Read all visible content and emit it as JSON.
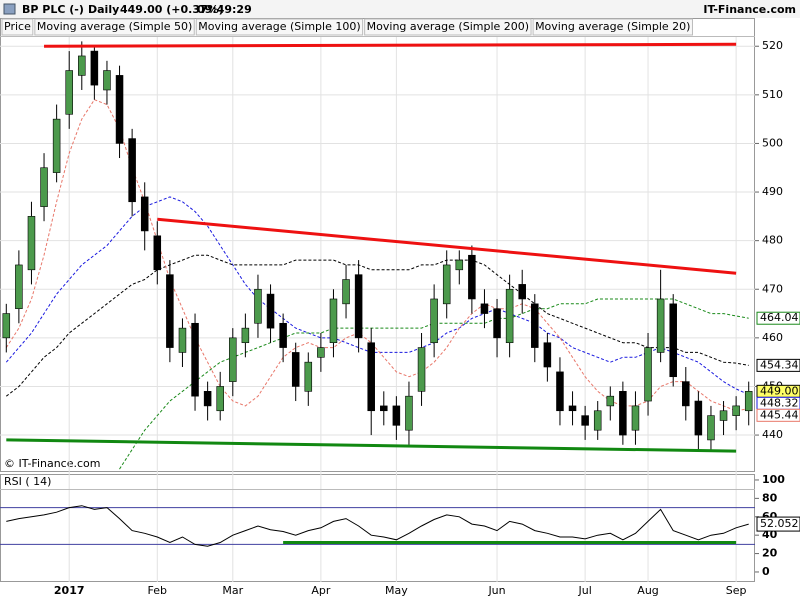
{
  "header": {
    "title": "BP PLC (-)",
    "period": "Daily",
    "quote": "449.00 (+0.37%)",
    "time": "09:49:29",
    "brand": "IT-Finance.com"
  },
  "chart_data": [
    {
      "type": "candlestick",
      "watermark": "© IT-Finance.com",
      "grid": true,
      "ylim": [
        432.4,
        521.9
      ],
      "yticks": [
        440,
        450,
        460,
        470,
        480,
        490,
        500,
        510,
        520
      ],
      "categories": [
        null,
        null,
        null,
        null,
        null,
        "2017",
        null,
        null,
        null,
        null,
        null,
        null,
        "Feb",
        null,
        null,
        null,
        null,
        null,
        "Mar",
        null,
        null,
        null,
        null,
        null,
        null,
        "Apr",
        null,
        null,
        null,
        null,
        null,
        "May",
        null,
        null,
        null,
        null,
        null,
        null,
        null,
        "Jun",
        null,
        null,
        null,
        null,
        null,
        null,
        "Jul",
        null,
        null,
        null,
        null,
        "Aug",
        null,
        null,
        null,
        null,
        null,
        null,
        "Sep",
        null
      ],
      "ohlc": {
        "name": "Price",
        "up_color": "#4c9a4c",
        "down_color": "#000000",
        "end_label": "449.00",
        "open": [
          460,
          466,
          474,
          487,
          494,
          506,
          514,
          519,
          511,
          514,
          501,
          489,
          481,
          473,
          457,
          463,
          449,
          445,
          451,
          459,
          463,
          469,
          463,
          457,
          449,
          456,
          459,
          467,
          473,
          459,
          446,
          446,
          441,
          449,
          459,
          467,
          474,
          477,
          467,
          466,
          459,
          471,
          467,
          459,
          453,
          446,
          444,
          441,
          446,
          449,
          441,
          447,
          457,
          467,
          451,
          447,
          439,
          443,
          444,
          445
        ],
        "high": [
          467,
          478,
          488,
          498,
          508,
          519,
          521,
          520,
          517,
          516,
          503,
          492,
          484,
          476,
          464,
          465,
          451,
          453,
          462,
          465,
          473,
          471,
          465,
          459,
          457,
          461,
          470,
          475,
          476,
          462,
          449,
          448,
          451,
          461,
          471,
          478,
          478,
          479,
          470,
          468,
          473,
          474,
          469,
          461,
          456,
          449,
          446,
          447,
          450,
          451,
          449,
          461,
          474,
          469,
          454,
          449,
          446,
          447,
          448,
          451
        ],
        "low": [
          457,
          463,
          471,
          484,
          492,
          503,
          511,
          509,
          508,
          497,
          485,
          478,
          471,
          455,
          454,
          445,
          443,
          443,
          448,
          456,
          460,
          459,
          455,
          447,
          446,
          453,
          456,
          464,
          457,
          440,
          442,
          439,
          438,
          446,
          456,
          464,
          471,
          465,
          462,
          456,
          456,
          465,
          455,
          451,
          442,
          442,
          439,
          439,
          443,
          438,
          438,
          444,
          455,
          450,
          443,
          437,
          437,
          440,
          441,
          442
        ],
        "close": [
          465,
          475,
          485,
          495,
          505,
          515,
          518,
          512,
          515,
          500,
          488,
          482,
          474,
          458,
          462,
          448,
          446,
          450,
          460,
          462,
          470,
          462,
          458,
          450,
          455,
          458,
          468,
          472,
          460,
          445,
          445,
          442,
          448,
          458,
          468,
          475,
          476,
          468,
          465,
          460,
          470,
          468,
          458,
          454,
          445,
          445,
          442,
          445,
          448,
          440,
          446,
          458,
          468,
          452,
          446,
          440,
          444,
          445,
          446,
          449
        ]
      },
      "series": [
        {
          "name": "Moving average (Simple 50)",
          "color": "#1a1adf",
          "end_label": "448.32",
          "values": [
            455,
            458,
            461,
            465,
            469,
            472,
            475,
            477,
            479,
            482,
            485,
            487,
            488,
            489,
            488,
            486,
            483,
            479,
            475,
            471,
            468,
            466,
            464,
            462,
            461,
            460,
            460,
            459,
            458,
            457,
            457,
            457,
            457,
            458,
            459,
            461,
            462,
            464,
            465,
            466,
            465,
            464,
            463,
            461,
            460,
            458,
            457,
            456,
            455,
            456,
            456,
            457,
            458,
            457,
            456,
            455,
            453,
            451,
            449.5,
            448.32
          ]
        },
        {
          "name": "Moving average (Simple 100)",
          "color": "#000000",
          "end_label": "454.34",
          "values": [
            448,
            450,
            453,
            456,
            458,
            461,
            463,
            465,
            467,
            469,
            471,
            472,
            474,
            475,
            476,
            477,
            477,
            476,
            475,
            475,
            475,
            475,
            475,
            476,
            476,
            476,
            476,
            475,
            475,
            474,
            474,
            474,
            474,
            475,
            475,
            476,
            476,
            476,
            475,
            473,
            471,
            469,
            467,
            465,
            464,
            463,
            462,
            461,
            460,
            459,
            459,
            458,
            458,
            458,
            457,
            457,
            456,
            455,
            454.8,
            454.34
          ]
        },
        {
          "name": "Moving average (Simple 200)",
          "color": "#1a8a1a",
          "end_label": "464.04",
          "values": [
            null,
            null,
            null,
            null,
            null,
            null,
            null,
            null,
            null,
            433,
            437,
            441,
            444,
            447,
            449,
            451,
            453,
            455,
            456,
            457,
            458,
            459,
            460,
            461,
            461,
            461,
            462,
            462,
            462,
            462,
            462,
            462,
            462,
            462,
            463,
            463,
            463,
            463,
            463,
            464,
            464,
            465,
            466,
            466,
            467,
            467,
            467,
            468,
            468,
            468,
            468,
            468,
            468,
            468,
            467,
            466,
            465,
            465,
            464.5,
            464.04
          ]
        },
        {
          "name": "Moving average (Simple 20)",
          "color": "#e8776a",
          "end_label": "445.44",
          "values": [
            458,
            462,
            468,
            477,
            488,
            498,
            505,
            509,
            508,
            503,
            495,
            488,
            480,
            472,
            466,
            460,
            455,
            450,
            447,
            446,
            448,
            452,
            456,
            458,
            459,
            458,
            458,
            460,
            461,
            459,
            456,
            453,
            452,
            453,
            455,
            458,
            462,
            465,
            467,
            466,
            466,
            467,
            466,
            463,
            460,
            456,
            452,
            449,
            447,
            446,
            446,
            447,
            450,
            451,
            451,
            449,
            447,
            446,
            445,
            445.44
          ]
        }
      ],
      "trendlines": [
        {
          "color": "#ee1111",
          "x": [
            3,
            58
          ],
          "values": [
            520,
            520.4
          ]
        },
        {
          "color": "#ee1111",
          "x": [
            12,
            58
          ],
          "values": [
            484.4,
            473.3
          ]
        },
        {
          "color": "#118811",
          "x": [
            0,
            58
          ],
          "values": [
            439,
            436.7
          ]
        }
      ]
    },
    {
      "type": "line",
      "title": "RSI ( 14)",
      "ylim": [
        -10.9,
        105.4
      ],
      "yticks": [
        0,
        20,
        40,
        60,
        80,
        100
      ],
      "ref_lines": [
        70,
        30
      ],
      "series": [
        {
          "color": "#000000",
          "end_label": "52.052",
          "values": [
            55,
            58,
            60,
            62,
            65,
            70,
            72,
            68,
            70,
            58,
            45,
            42,
            38,
            32,
            38,
            30,
            28,
            32,
            40,
            45,
            50,
            46,
            44,
            40,
            45,
            48,
            55,
            58,
            50,
            40,
            38,
            35,
            42,
            50,
            57,
            62,
            60,
            52,
            50,
            45,
            55,
            52,
            45,
            42,
            38,
            38,
            36,
            40,
            42,
            35,
            42,
            55,
            68,
            45,
            40,
            35,
            40,
            42,
            48,
            52.052
          ]
        }
      ],
      "trendlines": [
        {
          "color": "#118811",
          "x": [
            22,
            58
          ],
          "values": [
            32,
            32
          ]
        }
      ]
    }
  ]
}
